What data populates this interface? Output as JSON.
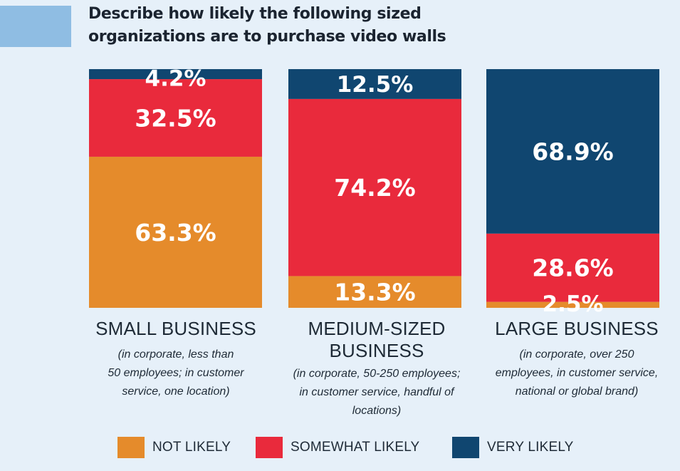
{
  "title_lines": [
    "Describe how likely the following sized",
    "organizations are to purchase video walls"
  ],
  "colors": {
    "not_likely": "#e58b2b",
    "somewhat_likely": "#e92a3c",
    "very_likely": "#104670",
    "accent": "#8fbde3",
    "background": "#e6f0f9"
  },
  "chart_data": {
    "type": "bar",
    "stacked": true,
    "normalized_to": 100,
    "title": "Describe how likely the following sized organizations are to purchase video walls",
    "categories": [
      "SMALL BUSINESS",
      "MEDIUM-SIZED BUSINESS",
      "LARGE BUSINESS"
    ],
    "category_subtitles": [
      "(in corporate, less than 50 employees; in customer service, one location)",
      "(in corporate, 50-250 employees; in customer service, handful of locations)",
      "(in corporate, over 250 employees, in customer service, national or global brand)"
    ],
    "series": [
      {
        "name": "NOT LIKELY",
        "values": [
          63.3,
          13.3,
          2.5
        ],
        "labels": [
          "63.3%",
          "13.3%",
          "2.5%"
        ]
      },
      {
        "name": "SOMEWHAT LIKELY",
        "values": [
          32.5,
          74.2,
          28.6
        ],
        "labels": [
          "32.5%",
          "74.2%",
          "28.6%"
        ]
      },
      {
        "name": "VERY LIKELY",
        "values": [
          4.2,
          12.5,
          68.9
        ],
        "labels": [
          "4.2%",
          "12.5%",
          "68.9%"
        ]
      }
    ],
    "legend_position": "bottom",
    "grid": false
  },
  "categories_display": [
    {
      "name_lines": [
        "SMALL BUSINESS"
      ],
      "sub_lines": [
        "(in corporate, less than",
        "50 employees; in customer",
        "service, one location)"
      ]
    },
    {
      "name_lines": [
        "MEDIUM-SIZED",
        "BUSINESS"
      ],
      "sub_lines": [
        "(in corporate, 50-250 employees;",
        "in customer service, handful of",
        "locations)"
      ]
    },
    {
      "name_lines": [
        "LARGE BUSINESS"
      ],
      "sub_lines": [
        "(in corporate, over 250",
        "employees, in customer service,",
        "national or global brand)"
      ]
    }
  ],
  "legend": [
    {
      "label": "NOT LIKELY"
    },
    {
      "label": "SOMEWHAT LIKELY"
    },
    {
      "label": "VERY LIKELY"
    }
  ]
}
